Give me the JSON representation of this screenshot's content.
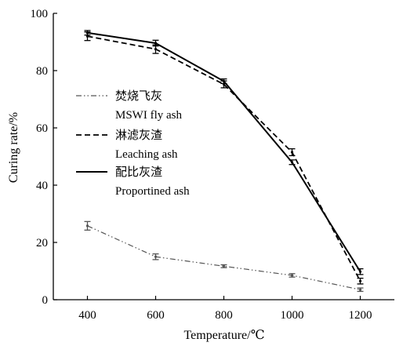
{
  "chart_data": {
    "type": "line",
    "x": [
      400,
      600,
      800,
      1000,
      1200
    ],
    "xlim": [
      300,
      1300
    ],
    "ylim": [
      0,
      100
    ],
    "xticks": [
      "400",
      "600",
      "800",
      "1000",
      "1200"
    ],
    "yticks": [
      "0",
      "20",
      "40",
      "60",
      "80",
      "100"
    ],
    "xlabel": "Temperature/℃",
    "ylabel": "Curing rate/%",
    "grid": false,
    "legend_position": "center-left",
    "series": [
      {
        "key": "mswi",
        "name": "焚烧飞灰",
        "name_en": "MSWI fly ash",
        "line_style": "dash-dot-dot",
        "color": "#555555",
        "values": [
          25.8,
          15.0,
          11.7,
          8.5,
          3.5
        ],
        "errors": [
          1.5,
          1.0,
          0.5,
          0.6,
          0.6
        ]
      },
      {
        "key": "leaching",
        "name": "淋滤灰渣",
        "name_en": "Leaching ash",
        "line_style": "dashed",
        "color": "#000000",
        "values": [
          92.0,
          87.5,
          75.2,
          51.5,
          6.5
        ],
        "errors": [
          1.5,
          1.5,
          1.2,
          1.2,
          1.0
        ]
      },
      {
        "key": "proportioned",
        "name": "配比灰渣",
        "name_en": "Proportined ash",
        "line_style": "solid",
        "color": "#000000",
        "values": [
          93.2,
          89.6,
          76.3,
          48.0,
          9.8
        ],
        "errors": [
          0.8,
          1.0,
          0.8,
          0.8,
          1.0
        ]
      }
    ]
  }
}
